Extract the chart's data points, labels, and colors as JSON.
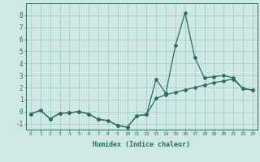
{
  "xlabel": "Humidex (Indice chaleur)",
  "bg_color": "#cde8e5",
  "grid_color": "#a8ccca",
  "line_color": "#2e6b60",
  "x_values": [
    0,
    1,
    2,
    3,
    4,
    5,
    6,
    7,
    8,
    9,
    10,
    11,
    12,
    13,
    14,
    15,
    16,
    17,
    18,
    19,
    20,
    21,
    22,
    23
  ],
  "line1_y": [
    -0.2,
    0.1,
    -0.6,
    -0.15,
    -0.1,
    0.0,
    -0.2,
    -0.65,
    -0.75,
    -1.15,
    -1.3,
    -0.35,
    -0.25,
    2.7,
    1.5,
    5.5,
    8.2,
    4.5,
    2.8,
    2.9,
    3.0,
    2.8,
    1.9,
    1.8
  ],
  "line2_y": [
    -0.2,
    0.1,
    -0.6,
    -0.15,
    -0.1,
    0.0,
    -0.2,
    -0.65,
    -0.75,
    -1.15,
    -1.3,
    -0.35,
    -0.25,
    1.1,
    1.4,
    1.6,
    1.8,
    2.0,
    2.2,
    2.4,
    2.55,
    2.7,
    1.9,
    1.8
  ],
  "ylim": [
    -1.5,
    9.0
  ],
  "xlim": [
    -0.5,
    23.5
  ],
  "yticks": [
    -1,
    0,
    1,
    2,
    3,
    4,
    5,
    6,
    7,
    8
  ],
  "xticks": [
    0,
    1,
    2,
    3,
    4,
    5,
    6,
    7,
    8,
    9,
    10,
    11,
    12,
    13,
    14,
    15,
    16,
    17,
    18,
    19,
    20,
    21,
    22,
    23
  ],
  "xtick_labels": [
    "0",
    "1",
    "2",
    "3",
    "4",
    "5",
    "6",
    "7",
    "8",
    "9",
    "10",
    "11",
    "12",
    "13",
    "14",
    "15",
    "16",
    "17",
    "18",
    "19",
    "20",
    "21",
    "22",
    "23"
  ]
}
